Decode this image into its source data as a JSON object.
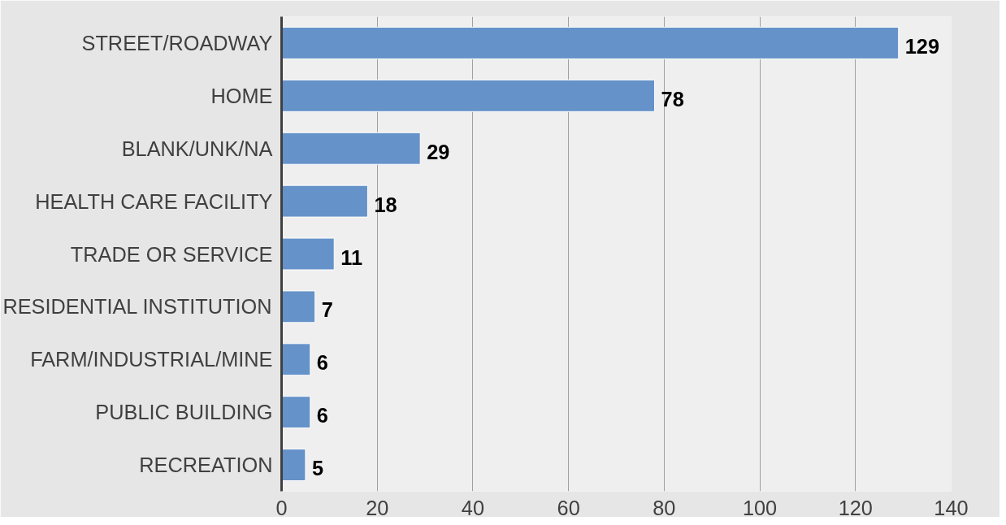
{
  "chart_data": {
    "type": "bar",
    "orientation": "horizontal",
    "categories": [
      "STREET/ROADWAY",
      "HOME",
      "BLANK/UNK/NA",
      "HEALTH CARE FACILITY",
      "TRADE OR SERVICE",
      "RESIDENTIAL INSTITUTION",
      "FARM/INDUSTRIAL/MINE",
      "PUBLIC BUILDING",
      "RECREATION"
    ],
    "values": [
      129,
      78,
      29,
      18,
      11,
      7,
      6,
      6,
      5
    ],
    "color": "#6592c8",
    "xlim": [
      0,
      140
    ],
    "xticks": [
      0,
      20,
      40,
      60,
      80,
      100,
      120,
      140
    ],
    "grid": "x",
    "data_labels": true
  }
}
